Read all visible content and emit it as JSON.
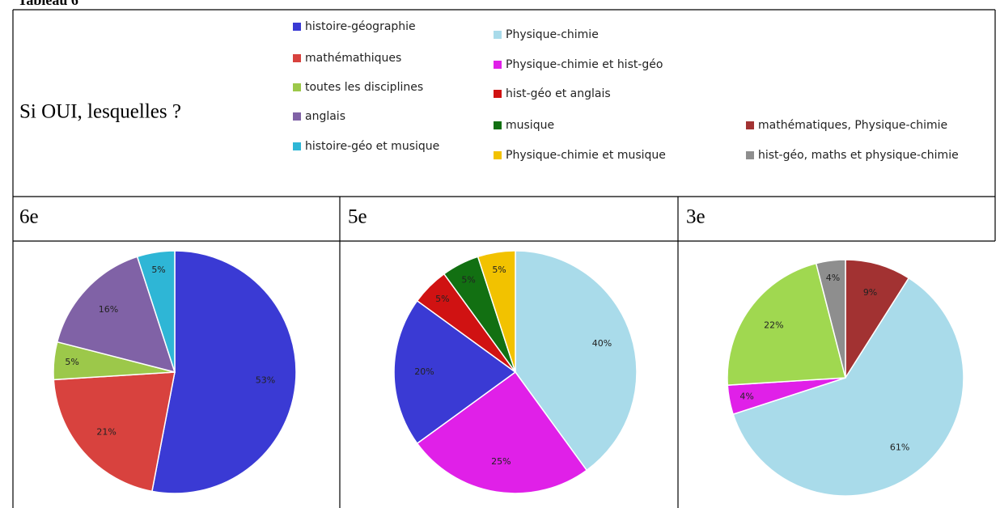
{
  "title": "Tableau 6",
  "question": "Si OUI, lesquelles ?",
  "legend": [
    {
      "name": "histoire-géographie",
      "color": "#3a3ad4"
    },
    {
      "name": "mathémathiques",
      "color": "#d8423e"
    },
    {
      "name": "toutes les disciplines",
      "color": "#9cc84a"
    },
    {
      "name": "anglais",
      "color": "#8062a6"
    },
    {
      "name": "histoire-géo et musique",
      "color": "#2eb6d6"
    },
    {
      "name": "Physique-chimie",
      "color": "#a9dbea"
    },
    {
      "name": "Physique-chimie et hist-géo",
      "color": "#e020e8"
    },
    {
      "name": "hist-géo et anglais",
      "color": "#d01212"
    },
    {
      "name": "musique",
      "color": "#127012"
    },
    {
      "name": "Physique-chimie et musique",
      "color": "#f2c200"
    },
    {
      "name": "mathématiques,  Physique-chimie",
      "color": "#a23232"
    },
    {
      "name": "hist-géo, maths et physique-chimie",
      "color": "#8e8e8e"
    }
  ],
  "chart_data": [
    {
      "type": "pie",
      "title": "6e",
      "values": [
        53,
        21,
        5,
        16,
        5
      ],
      "value_labels": [
        "53%",
        "21%",
        "5%",
        "16%",
        "5%"
      ],
      "colors": [
        "#3a3ad4",
        "#d8423e",
        "#9cc84a",
        "#8062a6",
        "#2eb6d6"
      ]
    },
    {
      "type": "pie",
      "title": "5e",
      "values": [
        40,
        25,
        20,
        5,
        5,
        5
      ],
      "value_labels": [
        "40%",
        "25%",
        "20%",
        "5%",
        "5%",
        "5%"
      ],
      "colors": [
        "#a9dbea",
        "#e020e8",
        "#3a3ad4",
        "#d01212",
        "#127012",
        "#f2c200"
      ]
    },
    {
      "type": "pie",
      "title": "3e",
      "values": [
        9,
        61,
        4,
        22,
        4
      ],
      "value_labels": [
        "9%",
        "61%",
        "4%",
        "22%",
        "4%"
      ],
      "colors": [
        "#a23232",
        "#a9dbea",
        "#e020e8",
        "#a0d850",
        "#8e8e8e"
      ]
    }
  ]
}
